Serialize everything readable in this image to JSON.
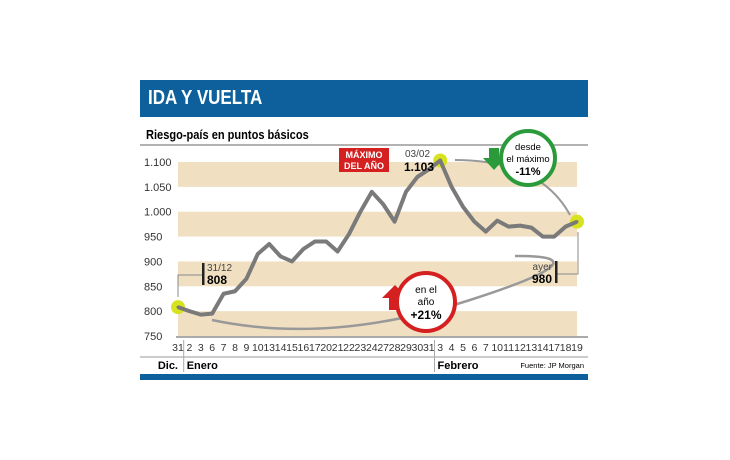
{
  "header": {
    "title": "IDA Y VUELTA"
  },
  "subtitle": "Riesgo-país en puntos básicos",
  "source": "Fuente: JP Morgan",
  "colors": {
    "header": "#0d609b",
    "band": "#f0dfc0",
    "line": "#7a7a7a",
    "highlight": "#d7e31f",
    "down": "#2a9a3a",
    "up": "#d42020"
  },
  "chart_data": {
    "type": "line",
    "ylim": [
      750,
      1100
    ],
    "yticks": [
      "750",
      "800",
      "850",
      "900",
      "950",
      "1.000",
      "1.050",
      "1.100"
    ],
    "ytick_values": [
      750,
      800,
      850,
      900,
      950,
      1000,
      1050,
      1100
    ],
    "categories": [
      "31",
      "2",
      "3",
      "6",
      "7",
      "8",
      "9",
      "10",
      "13",
      "14",
      "15",
      "16",
      "17",
      "20",
      "21",
      "22",
      "23",
      "24",
      "27",
      "28",
      "29",
      "30",
      "31",
      "3",
      "4",
      "5",
      "6",
      "7",
      "10",
      "11",
      "12",
      "13",
      "14",
      "17",
      "18",
      "19"
    ],
    "values": [
      808,
      800,
      793,
      795,
      835,
      840,
      865,
      915,
      935,
      910,
      900,
      925,
      940,
      940,
      920,
      955,
      1000,
      1040,
      1015,
      980,
      1040,
      1070,
      1085,
      1103,
      1050,
      1010,
      980,
      960,
      982,
      970,
      972,
      968,
      950,
      950,
      970,
      980
    ],
    "months": [
      {
        "label": "Dic.",
        "start": 0
      },
      {
        "label": "Enero",
        "start": 1
      },
      {
        "label": "Febrero",
        "start": 23
      }
    ],
    "annotations": {
      "start": {
        "date": "31/12",
        "value": "808"
      },
      "max": {
        "label1": "MÁXIMO",
        "label2": "DEL AÑO",
        "date": "03/02",
        "value": "1.103"
      },
      "from_max": {
        "l1": "desde",
        "l2": "el máximo",
        "pct": "-11%"
      },
      "year": {
        "l1": "en el",
        "l2": "año",
        "pct": "+21%"
      },
      "end": {
        "label": "ayer",
        "value": "980"
      }
    }
  }
}
